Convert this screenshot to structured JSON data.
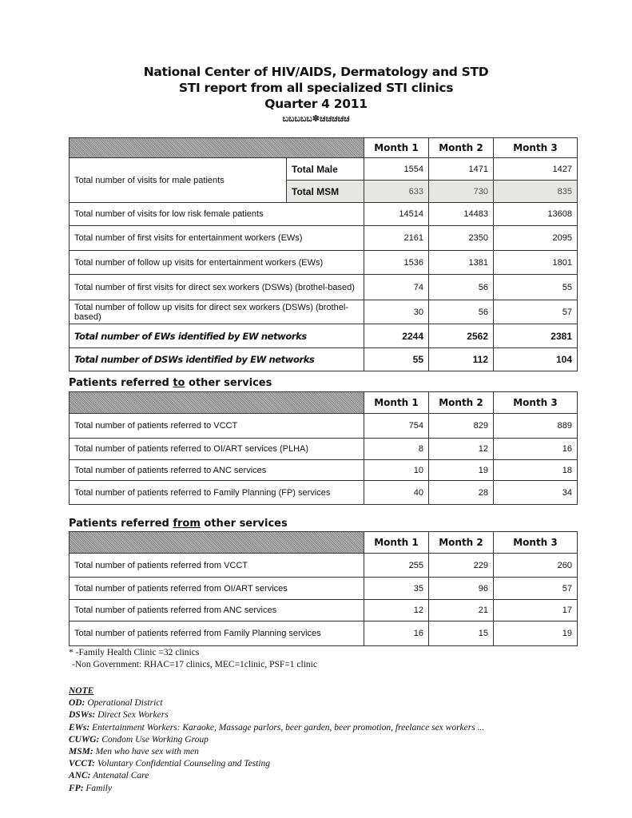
{
  "header": {
    "line1": "National Center of HIV/AIDS, Dermatology and STD",
    "line2": "STI report from all specialized STI clinics",
    "line3": "Quarter 4 2011",
    "ornament": "ಬಬಬಬಬ✽ಚಚಚಚಚ"
  },
  "months": [
    "Month 1",
    "Month 2",
    "Month 3"
  ],
  "table1": {
    "male_label": "Total number of visits for male patients",
    "male_rows": [
      {
        "sub": "Total Male",
        "values": [
          "1554",
          "1471",
          "1427"
        ]
      },
      {
        "sub": "Total MSM",
        "values": [
          "633",
          "730",
          "835"
        ]
      }
    ],
    "rows": [
      {
        "label": "Total number of visits for low risk female patients",
        "values": [
          "14514",
          "14483",
          "13608"
        ]
      },
      {
        "label": "Total number of first visits for entertainment workers (EWs)",
        "values": [
          "2161",
          "2350",
          "2095"
        ]
      },
      {
        "label": "Total number of follow up visits for entertainment workers (EWs)",
        "values": [
          "1536",
          "1381",
          "1801"
        ]
      },
      {
        "label": "Total number of first visits for direct sex workers (DSWs) (brothel-based)",
        "values": [
          "74",
          "56",
          "55"
        ]
      },
      {
        "label": "Total number of follow up visits for direct sex workers (DSWs) (brothel-based)",
        "values": [
          "30",
          "56",
          "57"
        ]
      }
    ],
    "bold_rows": [
      {
        "label": "Total number of EWs identified by EW networks",
        "values": [
          "2244",
          "2562",
          "2381"
        ]
      },
      {
        "label": "Total number of DSWs identified by EW networks",
        "values": [
          "55",
          "112",
          "104"
        ]
      }
    ]
  },
  "section2": {
    "pre": "Patients referred ",
    "u": "to",
    "post": " other services",
    "rows": [
      {
        "label": "Total number of patients referred to VCCT",
        "values": [
          "754",
          "829",
          "889"
        ]
      },
      {
        "label": "Total number of patients referred to OI/ART services (PLHA)",
        "values": [
          "8",
          "12",
          "16"
        ]
      },
      {
        "label": "Total number of patients referred to ANC services",
        "values": [
          "10",
          "19",
          "18"
        ]
      },
      {
        "label": "Total number of patients referred to Family Planning (FP) services",
        "values": [
          "40",
          "28",
          "34"
        ]
      }
    ]
  },
  "section3": {
    "pre": "Patients referred ",
    "u": "from",
    "post": " other services",
    "rows": [
      {
        "label": "Total number of patients referred from VCCT",
        "values": [
          "255",
          "229",
          "260"
        ]
      },
      {
        "label": "Total number of patients referred from OI/ART services",
        "values": [
          "35",
          "96",
          "57"
        ]
      },
      {
        "label": "Total number of patients referred from ANC services",
        "values": [
          "12",
          "21",
          "17"
        ]
      },
      {
        "label": "Total number of patients referred from Family Planning services",
        "values": [
          "16",
          "15",
          "19"
        ]
      }
    ]
  },
  "footnote": {
    "line1": "* -Family Health Clinic =32 clinics",
    "line2": "-Non Government: RHAC=17 clinics, MEC=1clinic, PSF=1 clinic"
  },
  "notes": {
    "title": "NOTE",
    "items": [
      {
        "k": "OD:",
        "v": " Operational District"
      },
      {
        "k": "DSWs:",
        "v": " Direct Sex Workers"
      },
      {
        "k": "EWs:",
        "v": " Entertainment Workers: Karaoke, Massage parlors, beer garden, beer promotion, freelance sex workers ..."
      },
      {
        "k": "CUWG:",
        "v": " Condom Use Working Group"
      },
      {
        "k": "MSM:",
        "v": " Men who have sex with men"
      },
      {
        "k": "VCCT:",
        "v": " Voluntary Confidential Counseling and Testing"
      },
      {
        "k": "ANC:",
        "v": " Antenatal Care"
      },
      {
        "k": "FP:",
        "v": " Family"
      }
    ]
  }
}
